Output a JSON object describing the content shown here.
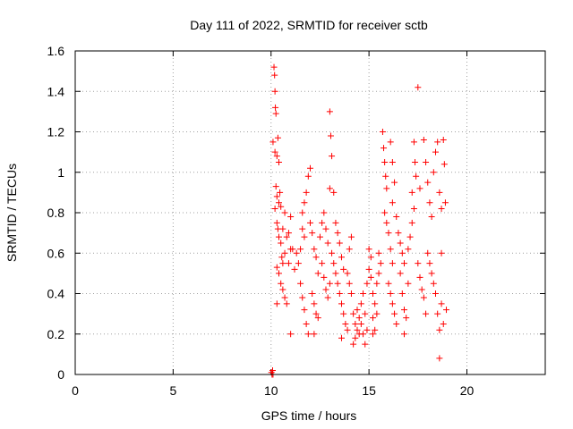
{
  "chart_data": {
    "type": "scatter",
    "title": "Day 111 of 2022, SRMTID for receiver sctb",
    "xlabel": "GPS time / hours",
    "ylabel": "SRMTID / TECUs",
    "xlim": [
      0,
      24
    ],
    "ylim": [
      0,
      1.6
    ],
    "xticks": [
      0,
      5,
      10,
      15,
      20
    ],
    "xtick_labels": [
      "0",
      "5",
      "10",
      "15",
      "20"
    ],
    "yticks": [
      0,
      0.2,
      0.4,
      0.6,
      0.8,
      1,
      1.2,
      1.4,
      1.6
    ],
    "ytick_labels": [
      "0",
      "0.2",
      "0.4",
      "0.6",
      "0.8",
      "1",
      "1.2",
      "1.4",
      "1.6"
    ],
    "grid": true,
    "marker": "+",
    "color": "#ff0000",
    "series": [
      {
        "name": "SRMTID",
        "points": [
          [
            10.02,
            0.01
          ],
          [
            10.05,
            0.0
          ],
          [
            10.08,
            0.02
          ],
          [
            10.1,
            0.0
          ],
          [
            10.15,
            1.52
          ],
          [
            10.18,
            1.48
          ],
          [
            10.2,
            1.4
          ],
          [
            10.22,
            1.32
          ],
          [
            10.25,
            1.29
          ],
          [
            10.1,
            1.15
          ],
          [
            10.2,
            1.1
          ],
          [
            10.3,
            1.08
          ],
          [
            10.35,
            1.17
          ],
          [
            10.4,
            1.05
          ],
          [
            10.25,
            0.93
          ],
          [
            10.3,
            0.88
          ],
          [
            10.4,
            0.85
          ],
          [
            10.45,
            0.9
          ],
          [
            10.5,
            0.83
          ],
          [
            10.2,
            0.82
          ],
          [
            10.3,
            0.75
          ],
          [
            10.35,
            0.72
          ],
          [
            10.4,
            0.68
          ],
          [
            10.5,
            0.65
          ],
          [
            10.6,
            0.72
          ],
          [
            10.7,
            0.8
          ],
          [
            10.55,
            0.58
          ],
          [
            10.6,
            0.55
          ],
          [
            10.7,
            0.6
          ],
          [
            10.3,
            0.53
          ],
          [
            10.4,
            0.5
          ],
          [
            10.5,
            0.45
          ],
          [
            10.6,
            0.42
          ],
          [
            10.7,
            0.38
          ],
          [
            10.8,
            0.35
          ],
          [
            10.9,
            0.55
          ],
          [
            11.0,
            0.62
          ],
          [
            10.8,
            0.68
          ],
          [
            10.3,
            0.35
          ],
          [
            10.9,
            0.7
          ],
          [
            11.0,
            0.78
          ],
          [
            11.1,
            0.62
          ],
          [
            11.2,
            0.52
          ],
          [
            11.0,
            0.2
          ],
          [
            11.3,
            0.6
          ],
          [
            11.4,
            0.55
          ],
          [
            11.5,
            0.62
          ],
          [
            11.6,
            0.72
          ],
          [
            11.7,
            0.68
          ],
          [
            11.5,
            0.45
          ],
          [
            11.6,
            0.38
          ],
          [
            11.7,
            0.32
          ],
          [
            11.8,
            0.25
          ],
          [
            11.9,
            0.2
          ],
          [
            11.6,
            0.8
          ],
          [
            11.7,
            0.85
          ],
          [
            11.8,
            0.9
          ],
          [
            11.9,
            0.98
          ],
          [
            12.0,
            1.02
          ],
          [
            12.0,
            0.75
          ],
          [
            12.1,
            0.7
          ],
          [
            12.2,
            0.62
          ],
          [
            12.3,
            0.58
          ],
          [
            12.4,
            0.5
          ],
          [
            12.1,
            0.4
          ],
          [
            12.2,
            0.35
          ],
          [
            12.3,
            0.3
          ],
          [
            12.4,
            0.28
          ],
          [
            12.2,
            0.2
          ],
          [
            12.5,
            0.68
          ],
          [
            12.6,
            0.75
          ],
          [
            12.7,
            0.8
          ],
          [
            12.8,
            0.72
          ],
          [
            12.9,
            0.65
          ],
          [
            12.6,
            0.55
          ],
          [
            12.7,
            0.48
          ],
          [
            12.8,
            0.42
          ],
          [
            12.9,
            0.38
          ],
          [
            13.0,
            0.45
          ],
          [
            13.0,
            1.3
          ],
          [
            13.05,
            1.18
          ],
          [
            13.1,
            1.08
          ],
          [
            13.0,
            0.92
          ],
          [
            13.2,
            0.9
          ],
          [
            13.1,
            0.6
          ],
          [
            13.2,
            0.55
          ],
          [
            13.3,
            0.5
          ],
          [
            13.4,
            0.45
          ],
          [
            13.5,
            0.4
          ],
          [
            13.3,
            0.75
          ],
          [
            13.4,
            0.7
          ],
          [
            13.5,
            0.65
          ],
          [
            13.6,
            0.58
          ],
          [
            13.7,
            0.52
          ],
          [
            13.6,
            0.35
          ],
          [
            13.7,
            0.3
          ],
          [
            13.8,
            0.25
          ],
          [
            13.9,
            0.22
          ],
          [
            13.6,
            0.18
          ],
          [
            13.9,
            0.5
          ],
          [
            14.0,
            0.45
          ],
          [
            14.1,
            0.4
          ],
          [
            14.0,
            0.62
          ],
          [
            14.1,
            0.68
          ],
          [
            14.2,
            0.3
          ],
          [
            14.3,
            0.25
          ],
          [
            14.4,
            0.22
          ],
          [
            14.5,
            0.2
          ],
          [
            14.3,
            0.18
          ],
          [
            14.2,
            0.15
          ],
          [
            14.4,
            0.32
          ],
          [
            14.5,
            0.28
          ],
          [
            14.6,
            0.25
          ],
          [
            14.7,
            0.2
          ],
          [
            14.6,
            0.35
          ],
          [
            14.7,
            0.4
          ],
          [
            14.8,
            0.3
          ],
          [
            14.9,
            0.22
          ],
          [
            14.8,
            0.15
          ],
          [
            14.9,
            0.45
          ],
          [
            15.0,
            0.52
          ],
          [
            15.1,
            0.58
          ],
          [
            15.0,
            0.62
          ],
          [
            15.1,
            0.48
          ],
          [
            15.2,
            0.4
          ],
          [
            15.3,
            0.35
          ],
          [
            15.4,
            0.3
          ],
          [
            15.2,
            0.28
          ],
          [
            15.3,
            0.22
          ],
          [
            15.2,
            0.2
          ],
          [
            15.4,
            0.45
          ],
          [
            15.5,
            0.5
          ],
          [
            15.6,
            0.55
          ],
          [
            15.5,
            0.6
          ],
          [
            15.7,
            1.2
          ],
          [
            15.75,
            1.12
          ],
          [
            15.8,
            1.05
          ],
          [
            15.85,
            0.98
          ],
          [
            15.9,
            0.92
          ],
          [
            15.8,
            0.8
          ],
          [
            15.9,
            0.75
          ],
          [
            16.0,
            0.7
          ],
          [
            16.1,
            0.62
          ],
          [
            16.2,
            0.55
          ],
          [
            16.0,
            0.45
          ],
          [
            16.1,
            0.4
          ],
          [
            16.2,
            0.35
          ],
          [
            16.3,
            0.3
          ],
          [
            16.4,
            0.25
          ],
          [
            16.1,
            1.15
          ],
          [
            16.2,
            1.05
          ],
          [
            16.3,
            0.95
          ],
          [
            16.2,
            0.85
          ],
          [
            16.4,
            0.78
          ],
          [
            16.5,
            0.7
          ],
          [
            16.6,
            0.65
          ],
          [
            16.7,
            0.6
          ],
          [
            16.8,
            0.55
          ],
          [
            16.6,
            0.5
          ],
          [
            16.7,
            0.4
          ],
          [
            16.8,
            0.32
          ],
          [
            16.9,
            0.28
          ],
          [
            16.8,
            0.2
          ],
          [
            17.0,
            0.45
          ],
          [
            17.0,
            0.62
          ],
          [
            17.1,
            0.68
          ],
          [
            17.2,
            0.75
          ],
          [
            17.3,
            0.82
          ],
          [
            17.2,
            0.9
          ],
          [
            17.3,
            1.15
          ],
          [
            17.35,
            1.05
          ],
          [
            17.4,
            0.98
          ],
          [
            17.5,
            1.42
          ],
          [
            17.6,
            0.92
          ],
          [
            17.5,
            0.55
          ],
          [
            17.6,
            0.48
          ],
          [
            17.7,
            0.42
          ],
          [
            17.8,
            0.38
          ],
          [
            17.9,
            0.3
          ],
          [
            17.8,
            1.16
          ],
          [
            17.9,
            1.05
          ],
          [
            18.0,
            0.95
          ],
          [
            18.1,
            0.85
          ],
          [
            18.2,
            0.78
          ],
          [
            18.0,
            0.6
          ],
          [
            18.1,
            0.55
          ],
          [
            18.2,
            0.5
          ],
          [
            18.3,
            0.45
          ],
          [
            18.4,
            0.4
          ],
          [
            18.3,
            1.0
          ],
          [
            18.4,
            1.1
          ],
          [
            18.5,
            1.15
          ],
          [
            18.6,
            0.9
          ],
          [
            18.7,
            0.82
          ],
          [
            18.5,
            0.3
          ],
          [
            18.6,
            0.22
          ],
          [
            18.7,
            0.35
          ],
          [
            18.8,
            0.25
          ],
          [
            18.6,
            0.08
          ],
          [
            18.8,
            1.16
          ],
          [
            18.85,
            1.04
          ],
          [
            18.9,
            0.85
          ],
          [
            18.95,
            0.32
          ],
          [
            18.7,
            0.6
          ]
        ]
      }
    ]
  }
}
